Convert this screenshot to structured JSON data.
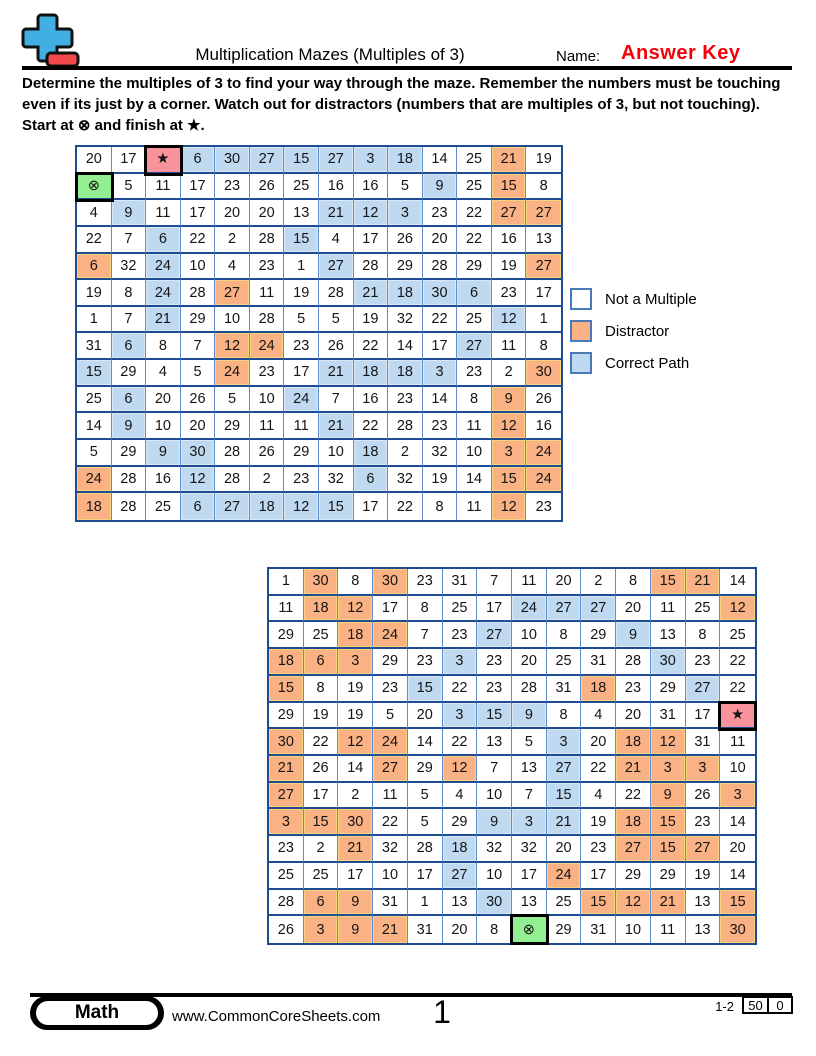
{
  "header": {
    "title": "Multiplication Mazes (Multiples of 3)",
    "name_label": "Name:",
    "answer_key": "Answer Key"
  },
  "instructions": {
    "line1": "Determine the multiples of 3 to find your way through the maze. Remember the numbers must be touching",
    "line2": "even if its just by a corner. Watch out for distractors (numbers that are multiples of 3, but not touching).",
    "line3": "Start at ⊗ and finish at ★."
  },
  "symbols": {
    "start": "⊗",
    "finish": "★"
  },
  "colors": {
    "distractor": "#FAB183",
    "correct_path": "#BFD9F1",
    "start_cell": "#92F092",
    "finish_cell": "#F8929B",
    "grid_line_dark": "#1F4B92",
    "grid_line_light": "#5E8FCB",
    "answer_key_red": "#F40009",
    "logo_blue": "#41AFE4",
    "logo_red": "#F2484B"
  },
  "legend": {
    "items": [
      {
        "label": "Not a Multiple",
        "type": "n"
      },
      {
        "label": "Distractor",
        "type": "d"
      },
      {
        "label": "Correct Path",
        "type": "p"
      }
    ]
  },
  "mazes": [
    {
      "rows": [
        [
          "20|n",
          "17|n",
          "★|f",
          "6|p",
          "30|p",
          "27|p",
          "15|p",
          "27|p",
          "3|p",
          "18|p",
          "14|n",
          "25|n",
          "21|d",
          "19|n"
        ],
        [
          "⊗|s",
          "5|n",
          "11|n",
          "17|n",
          "23|n",
          "26|n",
          "25|n",
          "16|n",
          "16|n",
          "5|n",
          "9|p",
          "25|n",
          "15|d",
          "8|n"
        ],
        [
          "4|n",
          "9|p",
          "11|n",
          "17|n",
          "20|n",
          "20|n",
          "13|n",
          "21|p",
          "12|p",
          "3|p",
          "23|n",
          "22|n",
          "27|d",
          "27|d"
        ],
        [
          "22|n",
          "7|n",
          "6|p",
          "22|n",
          "2|n",
          "28|n",
          "15|p",
          "4|n",
          "17|n",
          "26|n",
          "20|n",
          "22|n",
          "16|n",
          "13|n"
        ],
        [
          "6|d",
          "32|n",
          "24|p",
          "10|n",
          "4|n",
          "23|n",
          "1|n",
          "27|p",
          "28|n",
          "29|n",
          "28|n",
          "29|n",
          "19|n",
          "27|d"
        ],
        [
          "19|n",
          "8|n",
          "24|p",
          "28|n",
          "27|d",
          "11|n",
          "19|n",
          "28|n",
          "21|p",
          "18|p",
          "30|p",
          "6|p",
          "23|n",
          "17|n"
        ],
        [
          "1|n",
          "7|n",
          "21|p",
          "29|n",
          "10|n",
          "28|n",
          "5|n",
          "5|n",
          "19|n",
          "32|n",
          "22|n",
          "25|n",
          "12|p",
          "1|n"
        ],
        [
          "31|n",
          "6|p",
          "8|n",
          "7|n",
          "12|d",
          "24|d",
          "23|n",
          "26|n",
          "22|n",
          "14|n",
          "17|n",
          "27|p",
          "11|n",
          "8|n"
        ],
        [
          "15|p",
          "29|n",
          "4|n",
          "5|n",
          "24|d",
          "23|n",
          "17|n",
          "21|p",
          "18|p",
          "18|p",
          "3|p",
          "23|n",
          "2|n",
          "30|d"
        ],
        [
          "25|n",
          "6|p",
          "20|n",
          "26|n",
          "5|n",
          "10|n",
          "24|p",
          "7|n",
          "16|n",
          "23|n",
          "14|n",
          "8|n",
          "9|d",
          "26|n"
        ],
        [
          "14|n",
          "9|p",
          "10|n",
          "20|n",
          "29|n",
          "11|n",
          "11|n",
          "21|p",
          "22|n",
          "28|n",
          "23|n",
          "11|n",
          "12|d",
          "16|n"
        ],
        [
          "5|n",
          "29|n",
          "9|p",
          "30|p",
          "28|n",
          "26|n",
          "29|n",
          "10|n",
          "18|p",
          "2|n",
          "32|n",
          "10|n",
          "3|d",
          "24|d"
        ],
        [
          "24|d",
          "28|n",
          "16|n",
          "12|p",
          "28|n",
          "2|n",
          "23|n",
          "32|n",
          "6|p",
          "32|n",
          "19|n",
          "14|n",
          "15|d",
          "24|d"
        ],
        [
          "18|d",
          "28|n",
          "25|n",
          "6|p",
          "27|p",
          "18|p",
          "12|p",
          "15|p",
          "17|n",
          "22|n",
          "8|n",
          "11|n",
          "12|d",
          "23|n"
        ]
      ]
    },
    {
      "rows": [
        [
          "1|n",
          "30|d",
          "8|n",
          "30|d",
          "23|n",
          "31|n",
          "7|n",
          "11|n",
          "20|n",
          "2|n",
          "8|n",
          "15|d",
          "21|d",
          "14|n"
        ],
        [
          "11|n",
          "18|d",
          "12|d",
          "17|n",
          "8|n",
          "25|n",
          "17|n",
          "24|p",
          "27|p",
          "27|p",
          "20|n",
          "11|n",
          "25|n",
          "12|d"
        ],
        [
          "29|n",
          "25|n",
          "18|d",
          "24|d",
          "7|n",
          "23|n",
          "27|p",
          "10|n",
          "8|n",
          "29|n",
          "9|p",
          "13|n",
          "8|n",
          "25|n"
        ],
        [
          "18|d",
          "6|d",
          "3|d",
          "29|n",
          "23|n",
          "3|p",
          "23|n",
          "20|n",
          "25|n",
          "31|n",
          "28|n",
          "30|p",
          "23|n",
          "22|n"
        ],
        [
          "15|d",
          "8|n",
          "19|n",
          "23|n",
          "15|p",
          "22|n",
          "23|n",
          "28|n",
          "31|n",
          "18|d",
          "23|n",
          "29|n",
          "27|p",
          "22|n"
        ],
        [
          "29|n",
          "19|n",
          "19|n",
          "5|n",
          "20|n",
          "3|p",
          "15|p",
          "9|p",
          "8|n",
          "4|n",
          "20|n",
          "31|n",
          "17|n",
          "★|f"
        ],
        [
          "30|d",
          "22|n",
          "12|d",
          "24|d",
          "14|n",
          "22|n",
          "13|n",
          "5|n",
          "3|p",
          "20|n",
          "18|d",
          "12|d",
          "31|n",
          "11|n"
        ],
        [
          "21|d",
          "26|n",
          "14|n",
          "27|d",
          "29|n",
          "12|d",
          "7|n",
          "13|n",
          "27|p",
          "22|n",
          "21|d",
          "3|d",
          "3|d",
          "10|n"
        ],
        [
          "27|d",
          "17|n",
          "2|n",
          "11|n",
          "5|n",
          "4|n",
          "10|n",
          "7|n",
          "15|p",
          "4|n",
          "22|n",
          "9|d",
          "26|n",
          "3|d"
        ],
        [
          "3|d",
          "15|d",
          "30|d",
          "22|n",
          "5|n",
          "29|n",
          "9|p",
          "3|p",
          "21|p",
          "19|n",
          "18|d",
          "15|d",
          "23|n",
          "14|n"
        ],
        [
          "23|n",
          "2|n",
          "21|d",
          "32|n",
          "28|n",
          "18|p",
          "32|n",
          "32|n",
          "20|n",
          "23|n",
          "27|d",
          "15|d",
          "27|d",
          "20|n"
        ],
        [
          "25|n",
          "25|n",
          "17|n",
          "10|n",
          "17|n",
          "27|p",
          "10|n",
          "17|n",
          "24|d",
          "17|n",
          "29|n",
          "29|n",
          "19|n",
          "14|n"
        ],
        [
          "28|n",
          "6|d",
          "9|d",
          "31|n",
          "1|n",
          "13|n",
          "30|p",
          "13|n",
          "25|n",
          "15|d",
          "12|d",
          "21|d",
          "13|n",
          "15|d"
        ],
        [
          "26|n",
          "3|d",
          "9|d",
          "21|d",
          "31|n",
          "20|n",
          "8|n",
          "⊗|s",
          "29|n",
          "31|n",
          "10|n",
          "11|n",
          "13|n",
          "30|d"
        ]
      ]
    }
  ],
  "footer": {
    "subject": "Math",
    "website": "www.CommonCoreSheets.com",
    "page": "1",
    "range": "1-2",
    "score_possible": "50",
    "score": "0"
  }
}
